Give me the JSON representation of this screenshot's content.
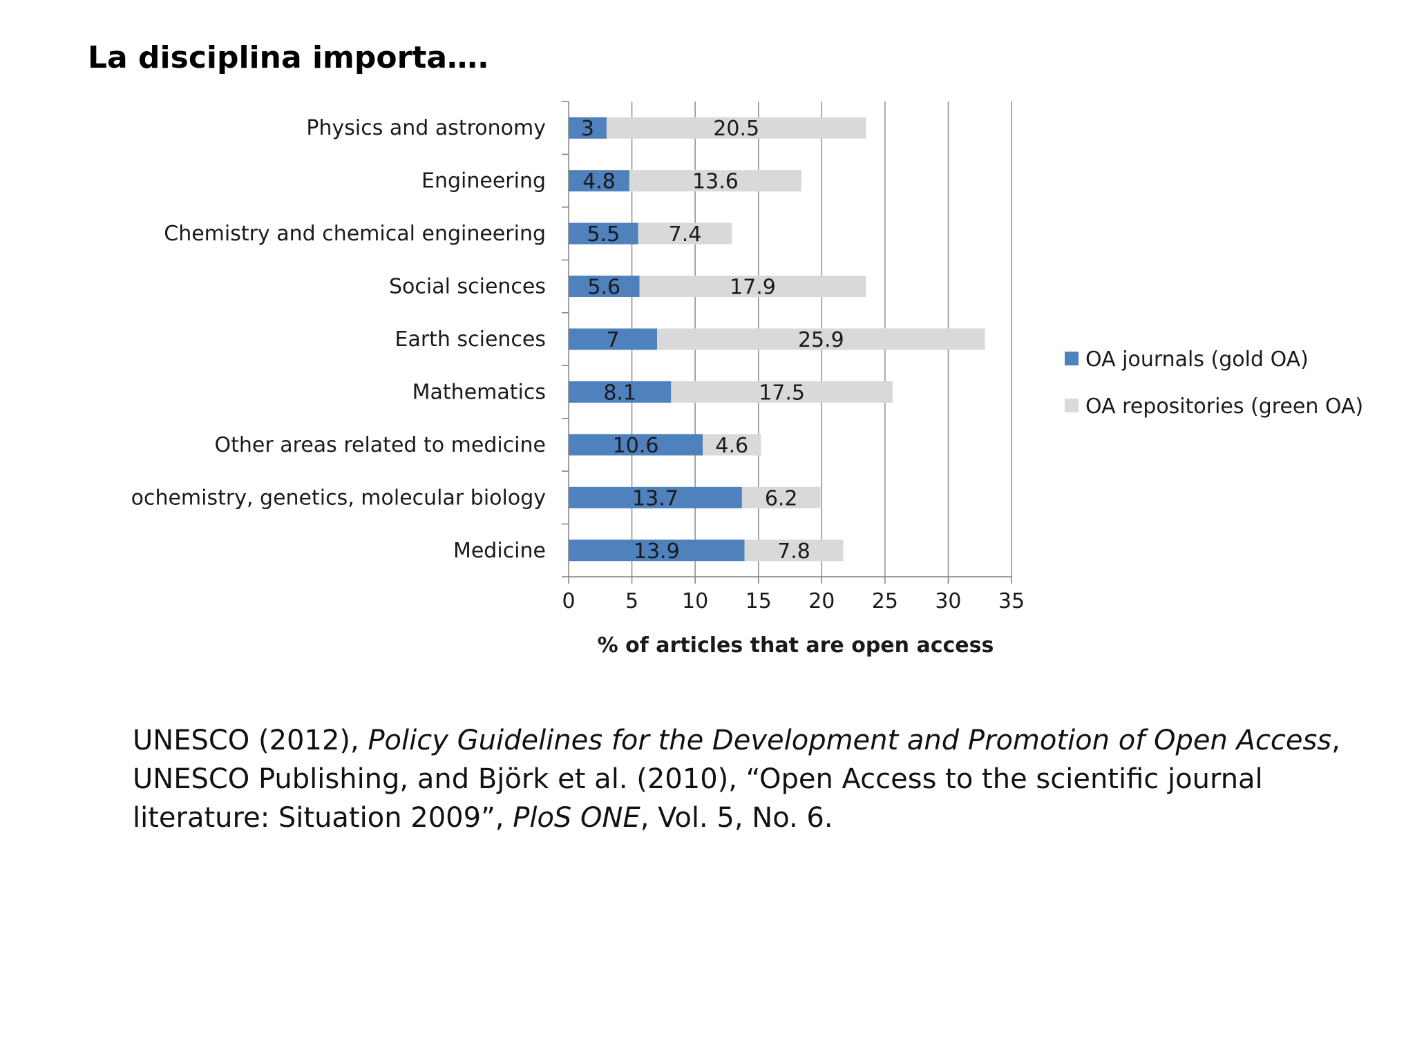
{
  "slide": {
    "title": "La disciplina importa…."
  },
  "chart_data": {
    "type": "bar",
    "orientation": "horizontal",
    "stacked": true,
    "categories": [
      "Physics and astronomy",
      "Engineering",
      "Chemistry and chemical engineering",
      "Social sciences",
      "Earth sciences",
      "Mathematics",
      "Other areas related to medicine",
      "ochemistry, genetics, molecular biology",
      "Medicine"
    ],
    "series": [
      {
        "name": "OA journals (gold OA)",
        "color": "#4f81bd",
        "values": [
          3,
          4.8,
          5.5,
          5.6,
          7,
          8.1,
          10.6,
          13.7,
          13.9
        ],
        "labels": [
          "3",
          "4.8",
          "5.5",
          "5.6",
          "7",
          "8.1",
          "10.6",
          "13.7",
          "13.9"
        ]
      },
      {
        "name": "OA repositories (green OA)",
        "color": "#d9d9d9",
        "values": [
          20.5,
          13.6,
          7.4,
          17.9,
          25.9,
          17.5,
          4.6,
          6.2,
          7.8
        ],
        "labels": [
          "20.5",
          "13.6",
          "7.4",
          "17.9",
          "25.9",
          "17.5",
          "4.6",
          "6.2",
          "7.8"
        ]
      }
    ],
    "xlabel": "% of articles that are open access",
    "xlim": [
      0,
      35
    ],
    "xticks": [
      "0",
      "5",
      "10",
      "15",
      "20",
      "25",
      "30",
      "35"
    ],
    "grid": "vertical",
    "legend": "right"
  },
  "citation": {
    "part1": "UNESCO (2012), ",
    "part2_italic": "Policy Guidelines for the Development and Promotion of Open Access",
    "part3": ", UNESCO Publishing, and Björk et al. (2010), “Open Access to the scientific journal literature: Situation 2009”, ",
    "part4_italic": "PloS ONE",
    "part5": ", Vol. 5, No. 6."
  }
}
